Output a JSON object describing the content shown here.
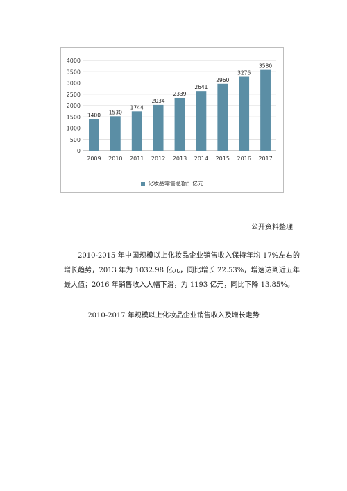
{
  "chart_data": {
    "type": "bar",
    "categories": [
      "2009",
      "2010",
      "2011",
      "2012",
      "2013",
      "2014",
      "2015",
      "2016",
      "2017"
    ],
    "values": [
      1400,
      1530,
      1744,
      2034,
      2339,
      2641,
      2960,
      3276,
      3580
    ],
    "yticks": [
      "0",
      "500",
      "1000",
      "1500",
      "2000",
      "2500",
      "3000",
      "3500",
      "4000"
    ],
    "ylim": [
      0,
      4000
    ],
    "grid": true,
    "legend": "bottom",
    "series": [
      {
        "name": "化妆品零售总额：亿元",
        "color": "#5b8ea5"
      }
    ]
  },
  "source_note": "公开资料整理",
  "paragraph": "2010-2015 年中国规模以上化妆品企业销售收入保持年均 17%左右的增长趋势，2013 年为 1032.98 亿元，同比增长 22.53%，增速达到近五年最大值；2016 年销售收入大幅下滑，为 1193 亿元，同比下降 13.85%。",
  "caption": "2010-2017 年规模以上化妆品企业销售收入及增长走势"
}
